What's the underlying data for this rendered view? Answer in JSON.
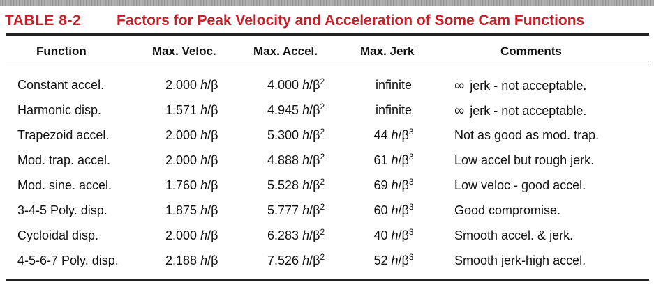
{
  "table": {
    "label": "TABLE 8-2",
    "title": "Factors for Peak Velocity and Acceleration of Some Cam Functions",
    "title_color": "#c8202a",
    "headers": [
      "Function",
      "Max. Veloc.",
      "Max. Accel.",
      "Max. Jerk",
      "Comments"
    ],
    "unit_h": "h",
    "unit_slash": "/",
    "unit_beta": "β",
    "sup2": "2",
    "sup3": "3",
    "rows": [
      {
        "function": "Constant accel.",
        "veloc": "2.000",
        "accel": "4.000",
        "jerk": "infinite",
        "jerk_unit": false,
        "comment_glyph": "∞",
        "comment": "jerk - not acceptable."
      },
      {
        "function": "Harmonic disp.",
        "veloc": "1.571",
        "accel": "4.945",
        "jerk": "infinite",
        "jerk_unit": false,
        "comment_glyph": "∞",
        "comment": "jerk - not acceptable."
      },
      {
        "function": "Trapezoid accel.",
        "veloc": "2.000",
        "accel": "5.300",
        "jerk": "44",
        "jerk_unit": true,
        "comment_glyph": "",
        "comment": "Not as good as mod. trap."
      },
      {
        "function": "Mod. trap. accel.",
        "veloc": "2.000",
        "accel": "4.888",
        "jerk": "61",
        "jerk_unit": true,
        "comment_glyph": "",
        "comment": "Low accel but rough jerk."
      },
      {
        "function": "Mod. sine. accel.",
        "veloc": "1.760",
        "accel": "5.528",
        "jerk": "69",
        "jerk_unit": true,
        "comment_glyph": "",
        "comment": "Low  veloc - good accel."
      },
      {
        "function": "3-4-5 Poly. disp.",
        "veloc": "1.875",
        "accel": "5.777",
        "jerk": "60",
        "jerk_unit": true,
        "comment_glyph": "",
        "comment": "Good compromise."
      },
      {
        "function": "Cycloidal  disp.",
        "veloc": "2.000",
        "accel": "6.283",
        "jerk": "40",
        "jerk_unit": true,
        "comment_glyph": "",
        "comment": "Smooth accel. & jerk."
      },
      {
        "function": "4-5-6-7 Poly. disp.",
        "veloc": "2.188",
        "accel": "7.526",
        "jerk": "52",
        "jerk_unit": true,
        "comment_glyph": "",
        "comment": "Smooth jerk-high accel."
      }
    ]
  }
}
